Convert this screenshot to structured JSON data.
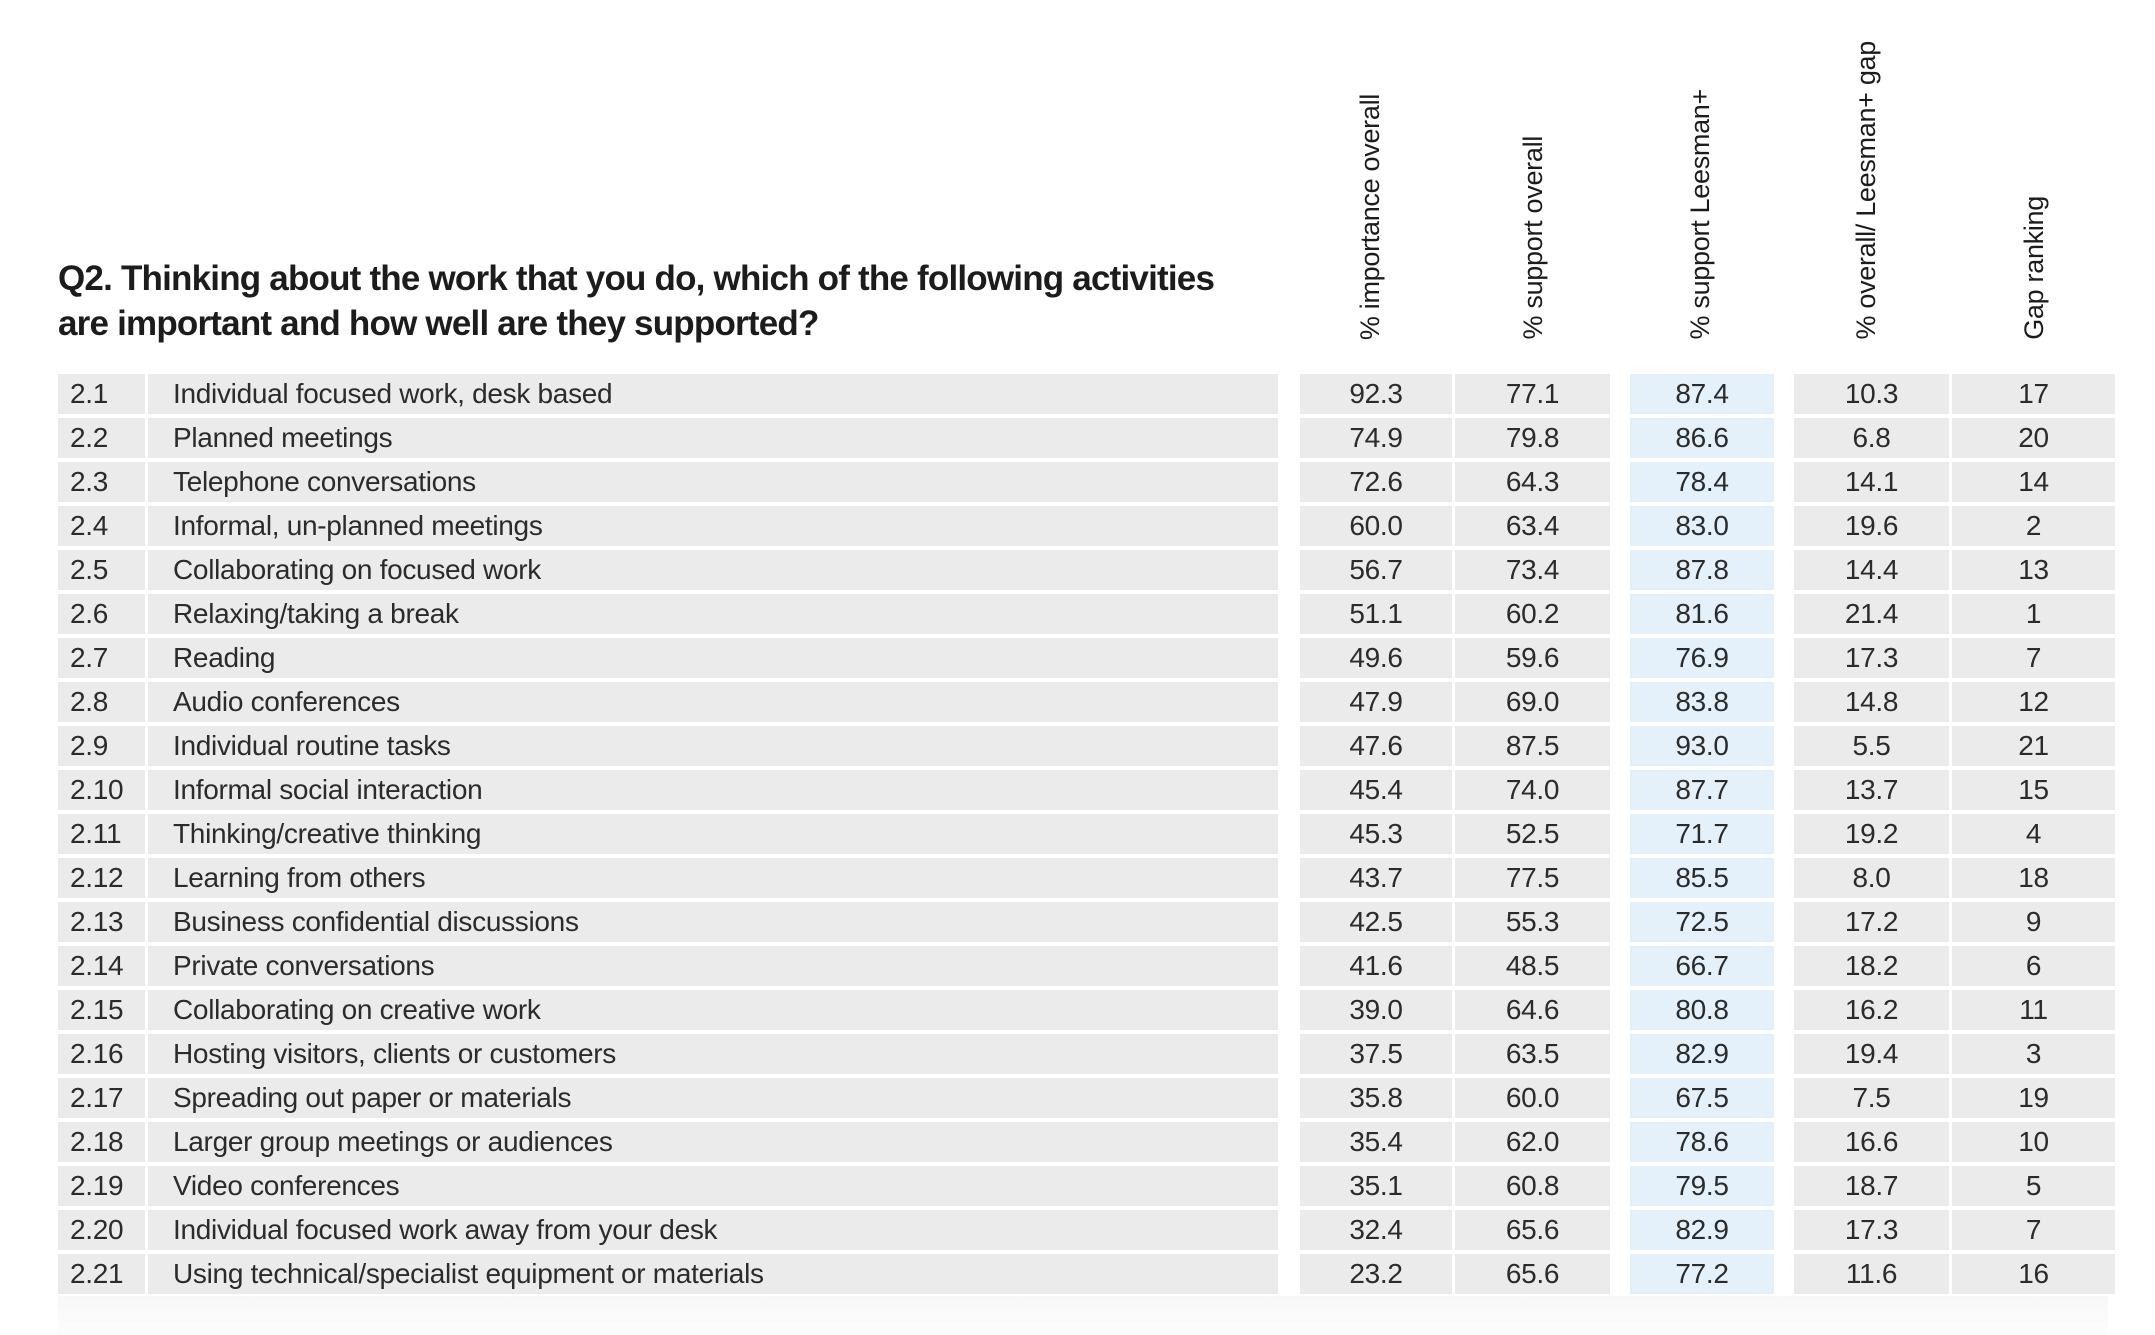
{
  "question": "Q2. Thinking about the work that you do, which of the following activities are important and how well are they supported?",
  "columns": {
    "importance_overall": "% importance overall",
    "support_overall": "% support overall",
    "support_leesman": "% support Leesman+",
    "gap": "% overall/ Leesman+ gap",
    "gap_ranking": "Gap ranking"
  },
  "rows": [
    {
      "num": "2.1",
      "label": "Individual focused work, desk based",
      "importance": "92.3",
      "support": "77.1",
      "leesman": "87.4",
      "gap": "10.3",
      "rank": "17"
    },
    {
      "num": "2.2",
      "label": "Planned meetings",
      "importance": "74.9",
      "support": "79.8",
      "leesman": "86.6",
      "gap": "6.8",
      "rank": "20"
    },
    {
      "num": "2.3",
      "label": "Telephone conversations",
      "importance": "72.6",
      "support": "64.3",
      "leesman": "78.4",
      "gap": "14.1",
      "rank": "14"
    },
    {
      "num": "2.4",
      "label": "Informal, un-planned meetings",
      "importance": "60.0",
      "support": "63.4",
      "leesman": "83.0",
      "gap": "19.6",
      "rank": "2"
    },
    {
      "num": "2.5",
      "label": "Collaborating on focused work",
      "importance": "56.7",
      "support": "73.4",
      "leesman": "87.8",
      "gap": "14.4",
      "rank": "13"
    },
    {
      "num": "2.6",
      "label": "Relaxing/taking a break",
      "importance": "51.1",
      "support": "60.2",
      "leesman": "81.6",
      "gap": "21.4",
      "rank": "1"
    },
    {
      "num": "2.7",
      "label": "Reading",
      "importance": "49.6",
      "support": "59.6",
      "leesman": "76.9",
      "gap": "17.3",
      "rank": "7"
    },
    {
      "num": "2.8",
      "label": "Audio conferences",
      "importance": "47.9",
      "support": "69.0",
      "leesman": "83.8",
      "gap": "14.8",
      "rank": "12"
    },
    {
      "num": "2.9",
      "label": "Individual routine tasks",
      "importance": "47.6",
      "support": "87.5",
      "leesman": "93.0",
      "gap": "5.5",
      "rank": "21"
    },
    {
      "num": "2.10",
      "label": "Informal social interaction",
      "importance": "45.4",
      "support": "74.0",
      "leesman": "87.7",
      "gap": "13.7",
      "rank": "15"
    },
    {
      "num": "2.11",
      "label": "Thinking/creative thinking",
      "importance": "45.3",
      "support": "52.5",
      "leesman": "71.7",
      "gap": "19.2",
      "rank": "4"
    },
    {
      "num": "2.12",
      "label": "Learning from others",
      "importance": "43.7",
      "support": "77.5",
      "leesman": "85.5",
      "gap": "8.0",
      "rank": "18"
    },
    {
      "num": "2.13",
      "label": "Business confidential discussions",
      "importance": "42.5",
      "support": "55.3",
      "leesman": "72.5",
      "gap": "17.2",
      "rank": "9"
    },
    {
      "num": "2.14",
      "label": "Private conversations",
      "importance": "41.6",
      "support": "48.5",
      "leesman": "66.7",
      "gap": "18.2",
      "rank": "6"
    },
    {
      "num": "2.15",
      "label": "Collaborating on creative work",
      "importance": "39.0",
      "support": "64.6",
      "leesman": "80.8",
      "gap": "16.2",
      "rank": "11"
    },
    {
      "num": "2.16",
      "label": "Hosting visitors, clients or customers",
      "importance": "37.5",
      "support": "63.5",
      "leesman": "82.9",
      "gap": "19.4",
      "rank": "3"
    },
    {
      "num": "2.17",
      "label": "Spreading out paper or materials",
      "importance": "35.8",
      "support": "60.0",
      "leesman": "67.5",
      "gap": "7.5",
      "rank": "19"
    },
    {
      "num": "2.18",
      "label": "Larger group meetings or audiences",
      "importance": "35.4",
      "support": "62.0",
      "leesman": "78.6",
      "gap": "16.6",
      "rank": "10"
    },
    {
      "num": "2.19",
      "label": "Video conferences",
      "importance": "35.1",
      "support": "60.8",
      "leesman": "79.5",
      "gap": "18.7",
      "rank": "5"
    },
    {
      "num": "2.20",
      "label": "Individual focused work away from your desk",
      "importance": "32.4",
      "support": "65.6",
      "leesman": "82.9",
      "gap": "17.3",
      "rank": "7"
    },
    {
      "num": "2.21",
      "label": "Using technical/specialist equipment or materials",
      "importance": "23.2",
      "support": "65.6",
      "leesman": "77.2",
      "gap": "11.6",
      "rank": "16"
    }
  ]
}
